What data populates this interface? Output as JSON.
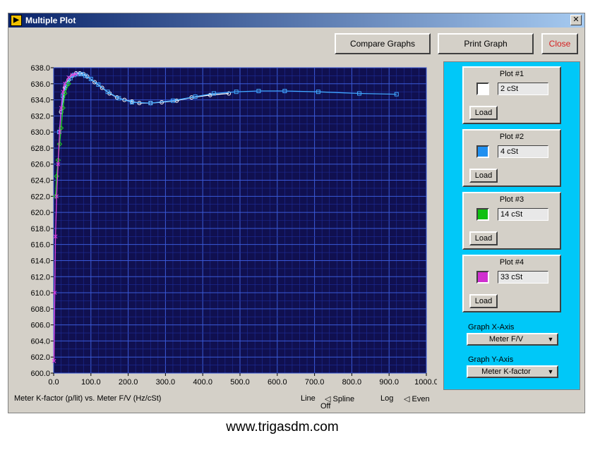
{
  "window": {
    "title": "Multiple Plot",
    "close_glyph": "✕"
  },
  "toolbar": {
    "compare_label": "Compare Graphs",
    "print_label": "Print Graph",
    "close_label": "Close"
  },
  "chart_data": {
    "type": "line",
    "title": "Meter K-factor (p/lit) vs. Meter F/V (Hz/cSt)",
    "xlim": [
      0,
      1000
    ],
    "ylim": [
      600,
      638
    ],
    "x_ticks": [
      "0.0",
      "100.0",
      "200.0",
      "300.0",
      "400.0",
      "500.0",
      "600.0",
      "700.0",
      "800.0",
      "900.0",
      "1000.0"
    ],
    "y_ticks": [
      "600.0",
      "602.0",
      "604.0",
      "606.0",
      "608.0",
      "610.0",
      "612.0",
      "614.0",
      "616.0",
      "618.0",
      "620.0",
      "622.0",
      "624.0",
      "626.0",
      "628.0",
      "630.0",
      "632.0",
      "634.0",
      "636.0",
      "638.0"
    ],
    "grid": true,
    "series": [
      {
        "name": "2 cSt",
        "color": "#ffffff",
        "marker": "circle",
        "x": [
          20,
          30,
          40,
          50,
          60,
          70,
          80,
          90,
          110,
          130,
          150,
          170,
          190,
          210,
          230,
          260,
          290,
          330,
          370,
          420,
          470
        ],
        "y": [
          632.5,
          635.5,
          636.5,
          637.0,
          637.3,
          637.3,
          637.2,
          636.9,
          636.2,
          635.5,
          634.8,
          634.3,
          634.0,
          633.8,
          633.6,
          633.6,
          633.7,
          633.9,
          634.3,
          634.6,
          634.8
        ]
      },
      {
        "name": "4 cSt",
        "color": "#40a8ff",
        "marker": "square",
        "x": [
          15,
          25,
          35,
          45,
          55,
          65,
          75,
          85,
          100,
          120,
          145,
          175,
          210,
          260,
          320,
          380,
          430,
          490,
          550,
          620,
          710,
          820,
          920
        ],
        "y": [
          630.0,
          634.5,
          636.0,
          636.7,
          637.1,
          637.2,
          637.2,
          637.0,
          636.6,
          635.9,
          635.0,
          634.2,
          633.7,
          633.6,
          633.9,
          634.4,
          634.8,
          635.0,
          635.1,
          635.1,
          635.0,
          634.8,
          634.7
        ]
      },
      {
        "name": "14 cSt",
        "color": "#20d020",
        "marker": "diamond",
        "x": [
          5,
          8,
          12,
          16,
          20,
          25,
          30,
          40
        ],
        "y": [
          622.0,
          624.5,
          626.5,
          628.5,
          630.5,
          633.0,
          634.8,
          636.0
        ]
      },
      {
        "name": "33 cSt",
        "color": "#e040e0",
        "marker": "x",
        "x": [
          1,
          3,
          5,
          8,
          12,
          16,
          20,
          25,
          30,
          40,
          50,
          60
        ],
        "y": [
          601.5,
          610.0,
          617.0,
          622.0,
          626.0,
          630.0,
          633.0,
          635.0,
          636.0,
          636.8,
          637.1,
          637.2
        ]
      }
    ]
  },
  "plot_controls": {
    "line_label": "Line",
    "off_label": "Off",
    "spline_label": "◁ Spline",
    "log_label": "Log",
    "even_label": "◁ Even"
  },
  "panel": {
    "plots": [
      {
        "title": "Plot #1",
        "value": "2 cSt",
        "color": "#ffffff",
        "load_label": "Load"
      },
      {
        "title": "Plot #2",
        "value": "4 cSt",
        "color": "#2090f0",
        "load_label": "Load"
      },
      {
        "title": "Plot #3",
        "value": "14 cSt",
        "color": "#10c010",
        "load_label": "Load"
      },
      {
        "title": "Plot #4",
        "value": "33 cSt",
        "color": "#d030d0",
        "load_label": "Load"
      }
    ],
    "x_axis_label": "Graph X-Axis",
    "x_axis_value": "Meter F/V",
    "y_axis_label": "Graph Y-Axis",
    "y_axis_value": "Meter K-factor"
  },
  "footer": {
    "url": "www.trigasdm.com"
  }
}
